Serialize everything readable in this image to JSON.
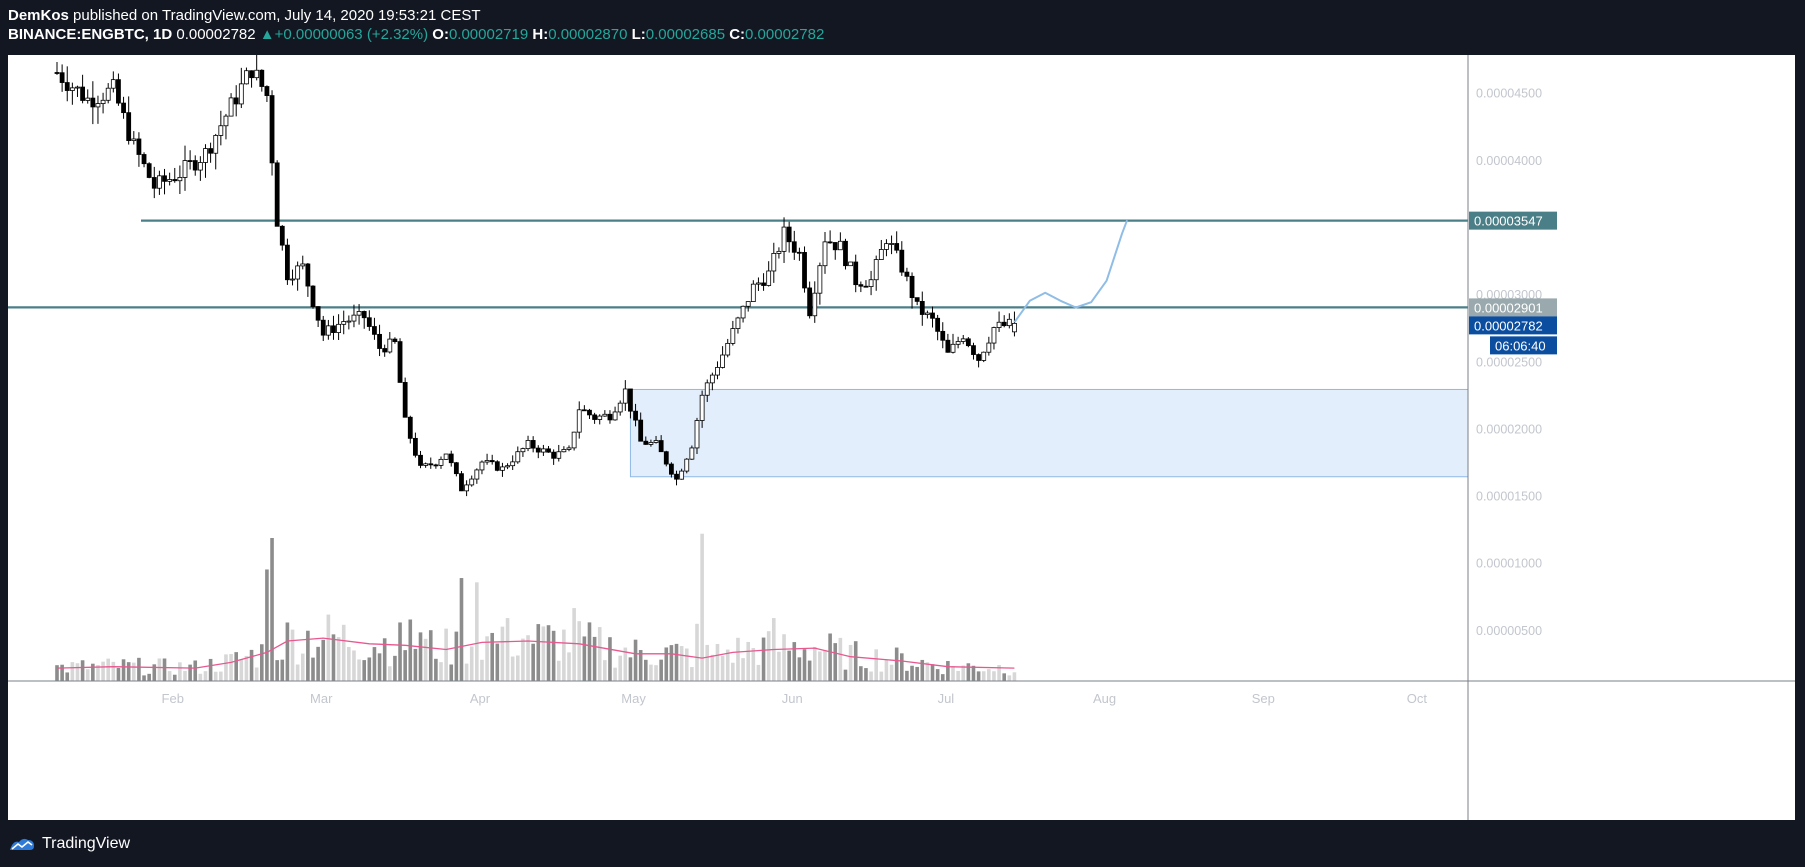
{
  "header": {
    "author": "DemKos",
    "published_text": " published on TradingView.com, July 14, 2020 19:53:21 CEST",
    "symbol": "BINANCE:ENGBTC, 1D",
    "price": "0.00002782",
    "arrow": "▲",
    "change": "+0.00000063 (+2.32%)",
    "o_label": "O:",
    "o_value": "0.00002719",
    "h_label": "H:",
    "h_value": "0.00002870",
    "l_label": "L:",
    "l_value": "0.00002685",
    "c_label": "C:",
    "c_value": "0.00002782"
  },
  "footer": {
    "brand": "TradingView"
  },
  "colors": {
    "background": "#131722",
    "chart_bg": "#ffffff",
    "candle_down": "#000000",
    "candle_up": "#ffffff",
    "level_line": "#4b7f88",
    "zone_fill": "#e3eefc",
    "zone_stroke": "#90b8e6",
    "projection": "#8fbde6",
    "volume_ma": "#e8588f",
    "volume_up": "#d7d7d7",
    "volume_down": "#8c8c8c",
    "price_badge": "#0b4ea0",
    "label_text": "#c2c6cd"
  },
  "chart_data": {
    "type": "candlestick",
    "symbol": "BINANCE:ENGBTC",
    "interval": "1D",
    "x_axis_labels": [
      "Feb",
      "Mar",
      "Apr",
      "May",
      "Jun",
      "Jul",
      "Aug",
      "Sep",
      "Oct"
    ],
    "y_axis_labels": [
      "0.00004500",
      "0.00004000",
      "0.00003000",
      "0.00002500",
      "0.00002000",
      "0.00001500",
      "0.00001000",
      "0.00000500"
    ],
    "y_ticks": [
      4.5e-05,
      4e-05,
      3e-05,
      2.5e-05,
      2e-05,
      1.5e-05,
      1e-05,
      5e-06
    ],
    "ylim": [
      1.2e-06,
      4.8e-05
    ],
    "horizontal_levels": [
      {
        "value": 3.547e-05,
        "label": "0.00003547"
      },
      {
        "value": 2.901e-05,
        "label": "0.00002901"
      }
    ],
    "last_price": {
      "value": 2.782e-05,
      "label": "0.00002782"
    },
    "countdown": "06:06:40",
    "demand_zone": {
      "from_date": "2020-04-30",
      "to_date": "2020-10-15",
      "top": 2.29e-05,
      "bottom": 1.64e-05
    },
    "projection_path": [
      {
        "date": "2020-07-14",
        "value": 2.79e-05
      },
      {
        "date": "2020-07-17",
        "value": 2.95e-05
      },
      {
        "date": "2020-07-20",
        "value": 3.01e-05
      },
      {
        "date": "2020-07-23",
        "value": 2.95e-05
      },
      {
        "date": "2020-07-26",
        "value": 2.9e-05
      },
      {
        "date": "2020-07-29",
        "value": 2.94e-05
      },
      {
        "date": "2020-08-01",
        "value": 3.1e-05
      },
      {
        "date": "2020-08-04",
        "value": 3.45e-05
      },
      {
        "date": "2020-08-05",
        "value": 3.55e-05
      }
    ],
    "anchors": [
      {
        "date": "2020-01-09",
        "value": 4.65e-05
      },
      {
        "date": "2020-01-15",
        "value": 4.45e-05
      },
      {
        "date": "2020-01-20",
        "value": 4.52e-05
      },
      {
        "date": "2020-01-24",
        "value": 4.1e-05
      },
      {
        "date": "2020-01-28",
        "value": 3.8e-05
      },
      {
        "date": "2020-02-02",
        "value": 3.9e-05
      },
      {
        "date": "2020-02-07",
        "value": 4.05e-05
      },
      {
        "date": "2020-02-12",
        "value": 4.4e-05
      },
      {
        "date": "2020-02-16",
        "value": 4.68e-05
      },
      {
        "date": "2020-02-19",
        "value": 4.48e-05
      },
      {
        "date": "2020-02-21",
        "value": 3.55e-05
      },
      {
        "date": "2020-02-23",
        "value": 3.15e-05
      },
      {
        "date": "2020-02-26",
        "value": 3.2e-05
      },
      {
        "date": "2020-03-01",
        "value": 2.7e-05
      },
      {
        "date": "2020-03-05",
        "value": 2.8e-05
      },
      {
        "date": "2020-03-09",
        "value": 2.83e-05
      },
      {
        "date": "2020-03-12",
        "value": 2.6e-05
      },
      {
        "date": "2020-03-15",
        "value": 2.63e-05
      },
      {
        "date": "2020-03-17",
        "value": 2.05e-05
      },
      {
        "date": "2020-03-20",
        "value": 1.7e-05
      },
      {
        "date": "2020-03-23",
        "value": 1.75e-05
      },
      {
        "date": "2020-03-25",
        "value": 1.82e-05
      },
      {
        "date": "2020-03-28",
        "value": 1.55e-05
      },
      {
        "date": "2020-04-01",
        "value": 1.75e-05
      },
      {
        "date": "2020-04-05",
        "value": 1.7e-05
      },
      {
        "date": "2020-04-10",
        "value": 1.88e-05
      },
      {
        "date": "2020-04-15",
        "value": 1.8e-05
      },
      {
        "date": "2020-04-18",
        "value": 1.83e-05
      },
      {
        "date": "2020-04-20",
        "value": 2.15e-05
      },
      {
        "date": "2020-04-23",
        "value": 2.08e-05
      },
      {
        "date": "2020-04-26",
        "value": 2.1e-05
      },
      {
        "date": "2020-04-29",
        "value": 2.28e-05
      },
      {
        "date": "2020-05-02",
        "value": 1.9e-05
      },
      {
        "date": "2020-05-05",
        "value": 1.88e-05
      },
      {
        "date": "2020-05-09",
        "value": 1.62e-05
      },
      {
        "date": "2020-05-12",
        "value": 1.88e-05
      },
      {
        "date": "2020-05-14",
        "value": 2.25e-05
      },
      {
        "date": "2020-05-18",
        "value": 2.55e-05
      },
      {
        "date": "2020-05-21",
        "value": 2.8e-05
      },
      {
        "date": "2020-05-24",
        "value": 3.05e-05
      },
      {
        "date": "2020-05-27",
        "value": 3.15e-05
      },
      {
        "date": "2020-05-30",
        "value": 3.45e-05
      },
      {
        "date": "2020-06-02",
        "value": 3.3e-05
      },
      {
        "date": "2020-06-04",
        "value": 2.88e-05
      },
      {
        "date": "2020-06-07",
        "value": 3.42e-05
      },
      {
        "date": "2020-06-10",
        "value": 3.35e-05
      },
      {
        "date": "2020-06-13",
        "value": 3.1e-05
      },
      {
        "date": "2020-06-16",
        "value": 3.1e-05
      },
      {
        "date": "2020-06-19",
        "value": 3.42e-05
      },
      {
        "date": "2020-06-22",
        "value": 3.2e-05
      },
      {
        "date": "2020-06-25",
        "value": 2.9e-05
      },
      {
        "date": "2020-06-28",
        "value": 2.8e-05
      },
      {
        "date": "2020-07-01",
        "value": 2.55e-05
      },
      {
        "date": "2020-07-04",
        "value": 2.7e-05
      },
      {
        "date": "2020-07-07",
        "value": 2.52e-05
      },
      {
        "date": "2020-07-10",
        "value": 2.75e-05
      },
      {
        "date": "2020-07-14",
        "value": 2.78e-05
      }
    ],
    "volume_ma_line": [
      {
        "date": "2020-01-09",
        "value": 0.09
      },
      {
        "date": "2020-01-20",
        "value": 0.1
      },
      {
        "date": "2020-02-05",
        "value": 0.09
      },
      {
        "date": "2020-02-12",
        "value": 0.13
      },
      {
        "date": "2020-02-19",
        "value": 0.2
      },
      {
        "date": "2020-02-23",
        "value": 0.28
      },
      {
        "date": "2020-03-01",
        "value": 0.3
      },
      {
        "date": "2020-03-10",
        "value": 0.26
      },
      {
        "date": "2020-03-17",
        "value": 0.25
      },
      {
        "date": "2020-03-25",
        "value": 0.22
      },
      {
        "date": "2020-04-01",
        "value": 0.27
      },
      {
        "date": "2020-04-10",
        "value": 0.28
      },
      {
        "date": "2020-04-20",
        "value": 0.26
      },
      {
        "date": "2020-05-01",
        "value": 0.19
      },
      {
        "date": "2020-05-08",
        "value": 0.19
      },
      {
        "date": "2020-05-14",
        "value": 0.16
      },
      {
        "date": "2020-05-20",
        "value": 0.2
      },
      {
        "date": "2020-05-28",
        "value": 0.22
      },
      {
        "date": "2020-06-05",
        "value": 0.23
      },
      {
        "date": "2020-06-12",
        "value": 0.17
      },
      {
        "date": "2020-06-22",
        "value": 0.14
      },
      {
        "date": "2020-07-01",
        "value": 0.1
      },
      {
        "date": "2020-07-14",
        "value": 0.09
      }
    ],
    "volume_spikes": [
      {
        "date": "2020-02-20",
        "value": 1.0
      },
      {
        "date": "2020-02-19",
        "value": 0.78
      },
      {
        "date": "2020-05-14",
        "value": 1.03
      },
      {
        "date": "2020-03-28",
        "value": 0.72
      },
      {
        "date": "2020-03-31",
        "value": 0.69
      },
      {
        "date": "2020-04-19",
        "value": 0.51
      },
      {
        "date": "2020-03-18",
        "value": 0.43
      },
      {
        "date": "2020-03-20",
        "value": 0.34
      },
      {
        "date": "2020-05-13",
        "value": 0.4
      },
      {
        "date": "2020-05-28",
        "value": 0.44
      },
      {
        "date": "2020-04-10",
        "value": 0.32
      },
      {
        "date": "2020-04-05",
        "value": 0.38
      }
    ]
  }
}
